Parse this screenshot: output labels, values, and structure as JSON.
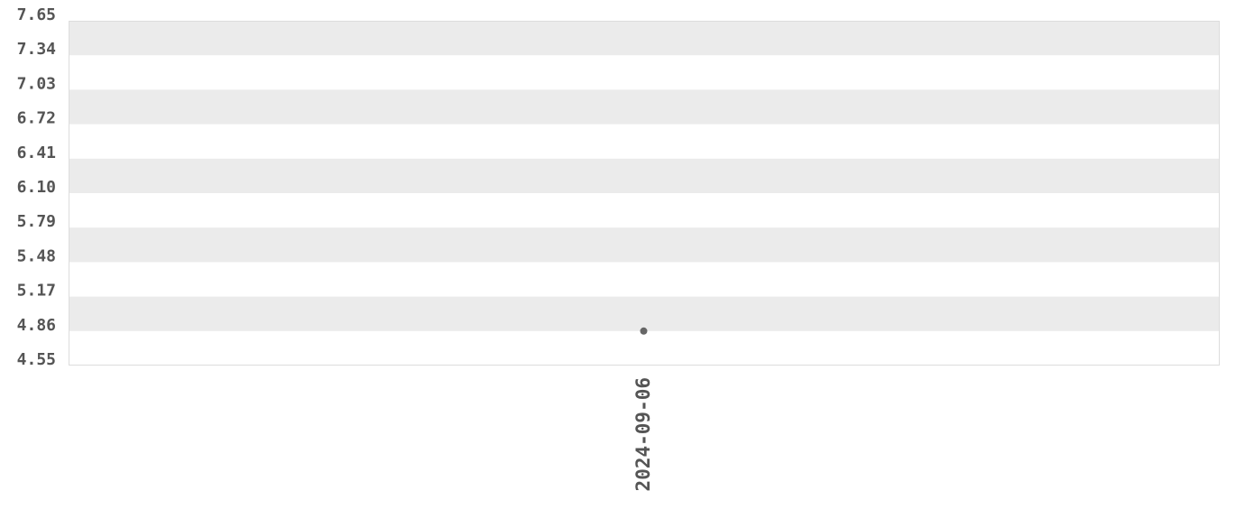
{
  "chart_data": {
    "type": "scatter",
    "title": "",
    "xlabel": "",
    "ylabel": "",
    "ylim": [
      4.55,
      7.65
    ],
    "y_ticks": [
      "7.65",
      "7.34",
      "7.03",
      "6.72",
      "6.41",
      "6.10",
      "5.79",
      "5.48",
      "5.17",
      "4.86",
      "4.55"
    ],
    "x_categories": [
      "2024-09-06"
    ],
    "points": [
      {
        "x": "2024-09-06",
        "y": 4.86
      }
    ],
    "grid": "alternating horizontal bands",
    "colors": {
      "band": "#ebebeb",
      "point": "#666666",
      "border": "#dddddd",
      "text": "#555555"
    }
  }
}
